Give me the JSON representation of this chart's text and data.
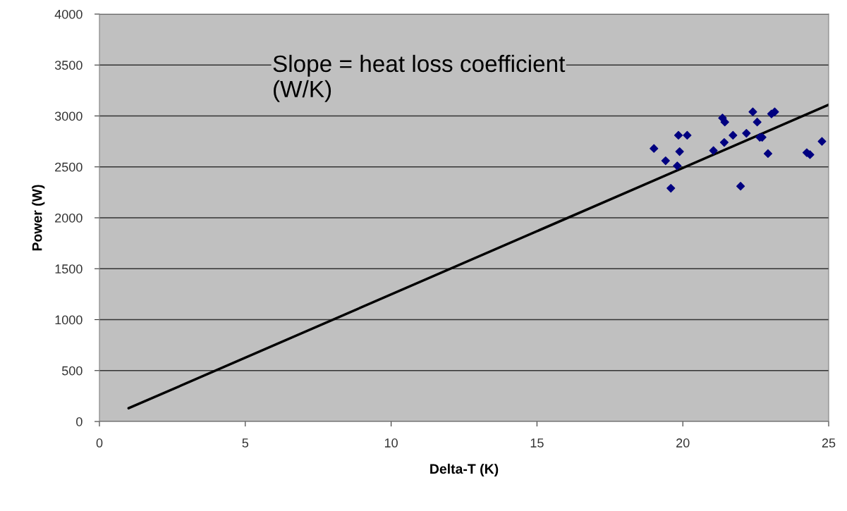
{
  "chart_data": {
    "type": "scatter",
    "xlabel": "Delta-T (K)",
    "ylabel": "Power (W)",
    "xlim": [
      0,
      25
    ],
    "xticks": [
      0,
      5,
      10,
      15,
      20,
      25
    ],
    "ylim": [
      0,
      4000
    ],
    "yticks": [
      0,
      500,
      1000,
      1500,
      2000,
      2500,
      3000,
      3500,
      4000
    ],
    "grid": "y",
    "legend": false,
    "annotations": [
      "Slope = heat loss coefficient\n(W/K)"
    ],
    "series": [
      {
        "color": "#000080",
        "marker": "diamond",
        "x": [
          19.01,
          19.41,
          19.59,
          19.81,
          19.89,
          19.85,
          20.15,
          21.05,
          21.42,
          21.36,
          21.44,
          21.72,
          21.98,
          22.18,
          22.4,
          22.55,
          22.64,
          22.72,
          22.92,
          23.04,
          23.15,
          24.25,
          24.36,
          24.77
        ],
        "values": [
          2680,
          2560,
          2290,
          2510,
          2650,
          2810,
          2810,
          2660,
          2740,
          2980,
          2940,
          2810,
          2310,
          2830,
          3040,
          2940,
          2790,
          2790,
          2630,
          3020,
          3040,
          2640,
          2620,
          2750
        ]
      },
      {
        "type": "line",
        "color": "#000000",
        "marker": "none",
        "line_style": "solid",
        "x": [
          1,
          25
        ],
        "values": [
          130,
          3110
        ]
      }
    ]
  }
}
